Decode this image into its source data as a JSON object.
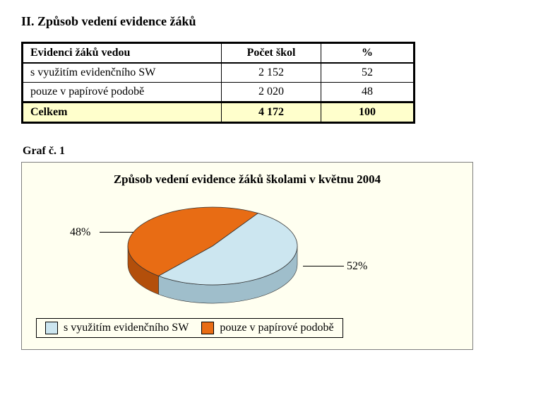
{
  "section_title": "II. Způsob vedení evidence žáků",
  "table": {
    "columns": [
      "Evidenci žáků vedou",
      "Počet škol",
      "%"
    ],
    "rows": [
      {
        "label": "s využitím evidenčního SW",
        "count": "2 152",
        "pct": "52"
      },
      {
        "label": "pouze v papírové podobě",
        "count": "2 020",
        "pct": "48"
      }
    ],
    "total": {
      "label": "Celkem",
      "count": "4 172",
      "pct": "100"
    },
    "total_bg": "#ffffcc"
  },
  "graf_label": "Graf č. 1",
  "chart": {
    "type": "pie-3d",
    "title": "Způsob vedení evidence žáků školami v květnu 2004",
    "background_color": "#fffff0",
    "border_color": "#7f7f7f",
    "slices": [
      {
        "label": "s využitím evidenčního SW",
        "value": 52,
        "pct_text": "52%",
        "fill": "#cce6f0",
        "side": "#9fbecb"
      },
      {
        "label": "pouze v papírové podobě",
        "value": 48,
        "pct_text": "48%",
        "fill": "#e86c14",
        "side": "#b34f0b"
      }
    ],
    "title_fontsize": 17,
    "label_fontsize": 16,
    "legend_position": "bottom",
    "aspect": "wide-3d"
  }
}
